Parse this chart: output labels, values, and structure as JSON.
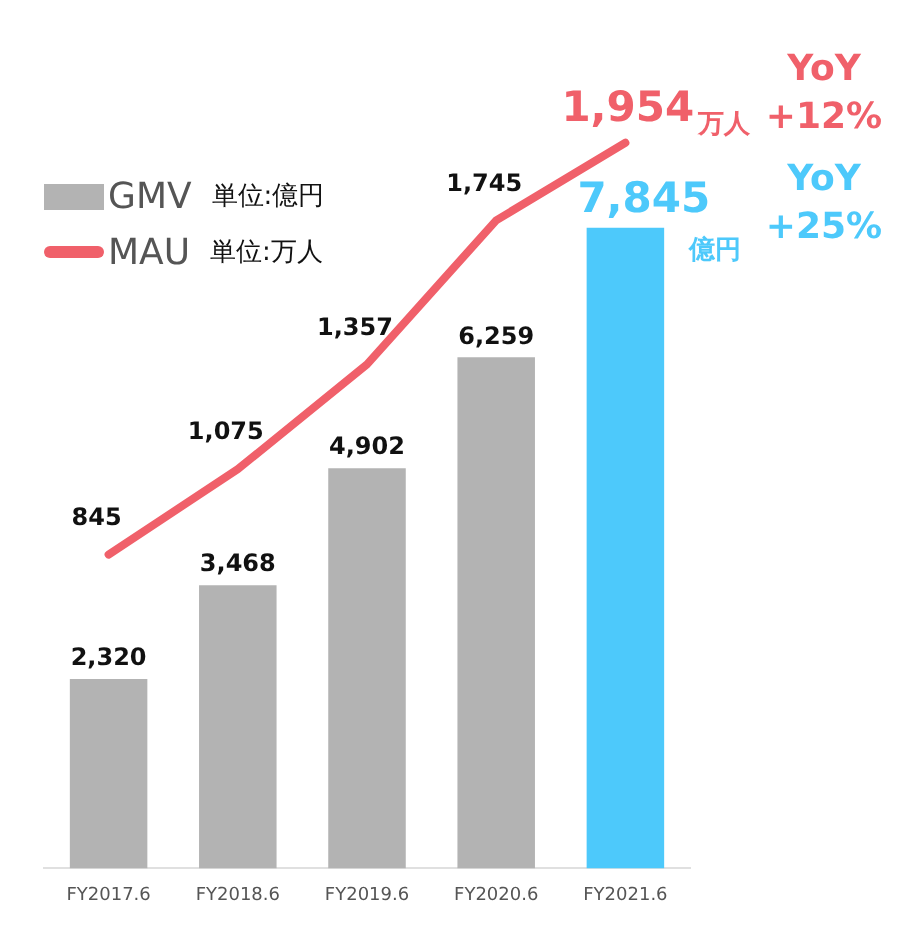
{
  "chart_data": {
    "type": "bar",
    "categories": [
      "FY2017.6",
      "FY2018.6",
      "FY2019.6",
      "FY2020.6",
      "FY2021.6"
    ],
    "series": [
      {
        "name": "GMV 単位:億円",
        "color": "#b3b3b3",
        "colors": [
          "#b3b3b3",
          "#b3b3b3",
          "#b3b3b3",
          "#b3b3b3",
          "#4dc9fb"
        ],
        "values": [
          2320,
          3468,
          4902,
          6259,
          7845
        ],
        "value_labels": [
          "2,320",
          "3,468",
          "4,902",
          "6,259",
          "7,845"
        ]
      },
      {
        "name": "MAU 単位:万人",
        "type": "line",
        "axis": "y2",
        "color": "#f0606a",
        "values": [
          845,
          1075,
          1357,
          1745,
          1954
        ],
        "value_labels": [
          "845",
          "1,075",
          "1,357",
          "1,745",
          "1,954"
        ]
      }
    ],
    "tick_labels": "x",
    "legend": "top left",
    "grid": false,
    "annotations": [
      "万人",
      "億円",
      "YoY\n+12%",
      "YoY\n+25%"
    ]
  }
}
